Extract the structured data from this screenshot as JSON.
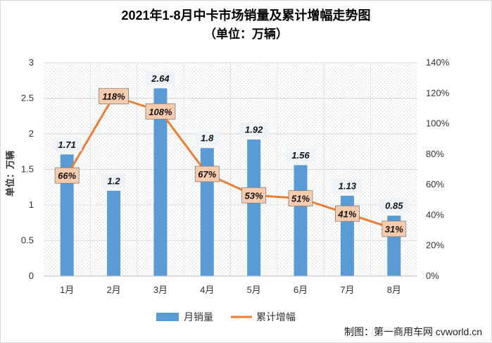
{
  "title": "2021年1-8月中卡市场销量及累计增幅走势图",
  "subtitle": "（单位：万辆）",
  "credit": "制图：第一商用车网 cvworld.cn",
  "chart_data": {
    "type": "bar",
    "categories": [
      "1月",
      "2月",
      "3月",
      "4月",
      "5月",
      "6月",
      "7月",
      "8月"
    ],
    "series": [
      {
        "name": "月销量",
        "type": "bar",
        "axis": "left",
        "values": [
          1.71,
          1.2,
          2.64,
          1.8,
          1.92,
          1.56,
          1.13,
          0.85
        ],
        "labels": [
          "1.71",
          "1.2",
          "2.64",
          "1.8",
          "1.92",
          "1.56",
          "1.13",
          "0.85"
        ],
        "color": "#5b9bd5"
      },
      {
        "name": "累计增幅",
        "type": "line",
        "axis": "right",
        "values": [
          66,
          118,
          108,
          67,
          53,
          51,
          41,
          31
        ],
        "labels": [
          "66%",
          "118%",
          "108%",
          "67%",
          "53%",
          "51%",
          "41%",
          "31%"
        ],
        "color": "#ed7d31"
      }
    ],
    "ylabel": "单位：万辆",
    "ylim": [
      0,
      3
    ],
    "yticks": [
      "0",
      "0.5",
      "1",
      "1.5",
      "2",
      "2.5",
      "3"
    ],
    "y2lim": [
      0,
      140
    ],
    "y2ticks": [
      "0%",
      "20%",
      "40%",
      "60%",
      "80%",
      "100%",
      "120%",
      "140%"
    ],
    "legend": "bottom",
    "grid": true,
    "grid_style": "dotted hatch"
  }
}
